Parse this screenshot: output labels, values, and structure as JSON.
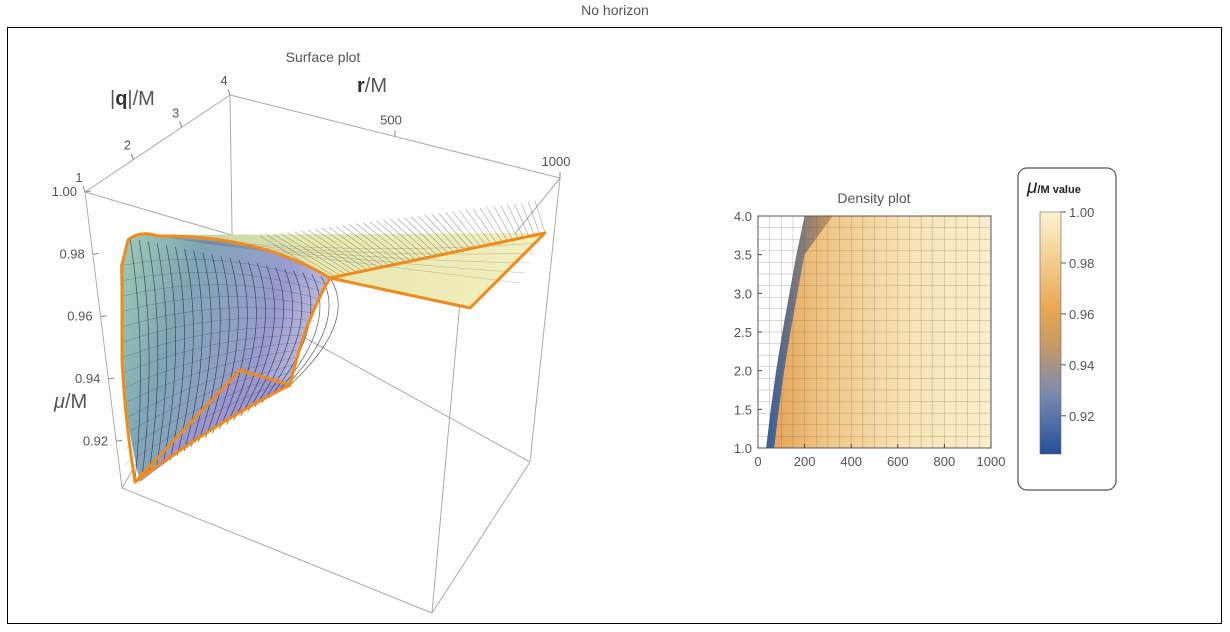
{
  "header": {
    "title": "No horizon"
  },
  "chart_data": [
    {
      "type": "surface3d",
      "title": "Surface plot",
      "x_axis": {
        "label_bold": "r",
        "label_rest": "/M",
        "ticks": [
          "500",
          "1000"
        ]
      },
      "y_axis": {
        "label_bold": "q",
        "label_prefix": "|",
        "label_rest": "|/M",
        "ticks": [
          "1",
          "2",
          "3",
          "4"
        ]
      },
      "z_axis": {
        "label_mu": "μ",
        "label_rest": "/M",
        "ticks": [
          "0.92",
          "0.94",
          "0.96",
          "0.98",
          "1.00"
        ]
      },
      "ranges": {
        "r": [
          0,
          1000
        ],
        "q": [
          1,
          4
        ],
        "mu": [
          0.905,
          1.0
        ]
      },
      "surface_color": "#e8e3a8",
      "edge_color": "#f08a1a",
      "low_color": "#8a86c8"
    },
    {
      "type": "heatmap",
      "title": "Density plot",
      "x_ticks": [
        "0",
        "200",
        "400",
        "600",
        "800",
        "1000"
      ],
      "y_ticks": [
        "1.0",
        "1.5",
        "2.0",
        "2.5",
        "3.0",
        "3.5",
        "4.0"
      ],
      "xlim": [
        0,
        1000
      ],
      "ylim": [
        1.0,
        4.0
      ],
      "boundary": [
        {
          "q": 1.0,
          "r": 35
        },
        {
          "q": 1.5,
          "r": 55
        },
        {
          "q": 2.0,
          "r": 78
        },
        {
          "q": 2.5,
          "r": 105
        },
        {
          "q": 3.0,
          "r": 135
        },
        {
          "q": 3.5,
          "r": 165
        },
        {
          "q": 4.0,
          "r": 200
        }
      ],
      "colors": {
        "low": "#2a5aa0",
        "mid": "#e8a050",
        "high": "#fbf0c8"
      }
    }
  ],
  "legend": {
    "title_mu": "μ",
    "title_rest": "/M value",
    "ticks": [
      "1.00",
      "0.98",
      "0.96",
      "0.94",
      "0.92"
    ],
    "range": [
      0.905,
      1.0
    ]
  }
}
